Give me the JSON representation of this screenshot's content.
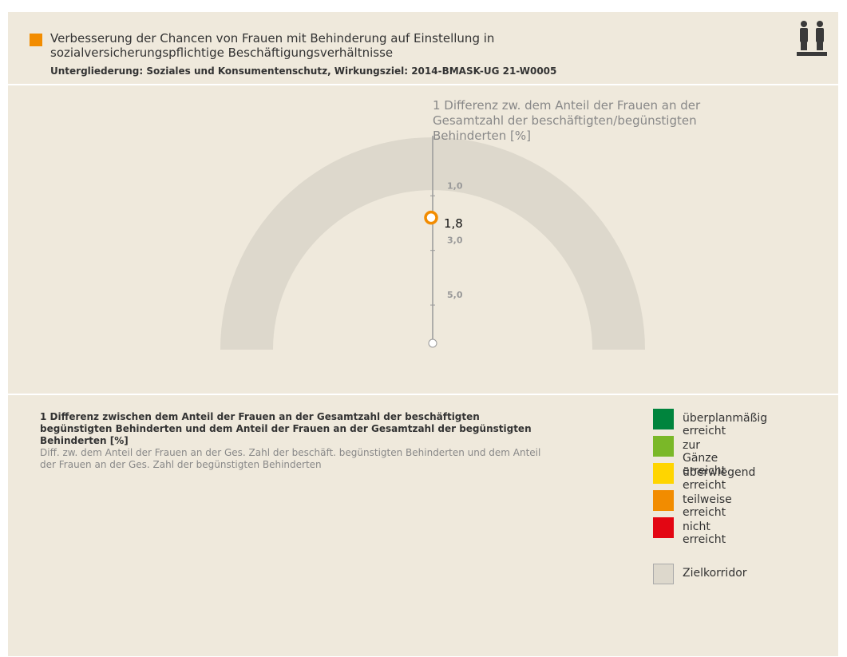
{
  "header": {
    "title": "Verbesserung der Chancen von Frauen mit Behinderung auf Einstellung in sozialversicherungspflichtige Beschäftigungsverhältnisse",
    "subtitle": "Untergliederung: Soziales und Konsumentenschutz, Wirkungsziel: 2014-BMASK-UG 21-W0005"
  },
  "chart_data": {
    "type": "gauge",
    "title": "1 Differenz zw. dem Anteil der Frauen an der Gesamtzahl der beschäftigten/begünstigten Behinderten [%]",
    "value": 1.8,
    "value_label": "1,8",
    "color": "#f28c00",
    "band_color": "#ddd8cc",
    "ylim": [
      -1.2,
      6.4
    ],
    "yticks": [
      {
        "value": 1,
        "label": "1,0"
      },
      {
        "value": 3,
        "label": "3,0"
      },
      {
        "value": 5,
        "label": "5,0"
      }
    ]
  },
  "description": {
    "heading": "1 Differenz zwischen dem Anteil der Frauen an der Gesamtzahl der beschäftigten begünstigten Behinderten und dem Anteil der Frauen an der Gesamtzahl der begünstigten Behinderten [%]",
    "text": "Diff. zw. dem Anteil der Frauen an der Ges. Zahl der beschäft. begünstigten Behinderten und dem Anteil der Frauen an der Ges. Zahl der begünstigten Behinderten"
  },
  "legend": [
    {
      "label": "überplanmäßig erreicht",
      "color": "#00843d"
    },
    {
      "label": "zur Gänze erreicht",
      "color": "#7ab828"
    },
    {
      "label": "überwiegend erreicht",
      "color": "#ffd500"
    },
    {
      "label": "teilweise erreicht",
      "color": "#f28c00"
    },
    {
      "label": "nicht erreicht",
      "color": "#e30613"
    },
    {
      "label": "Zielkorridor",
      "color": "#ddd8cc"
    }
  ]
}
